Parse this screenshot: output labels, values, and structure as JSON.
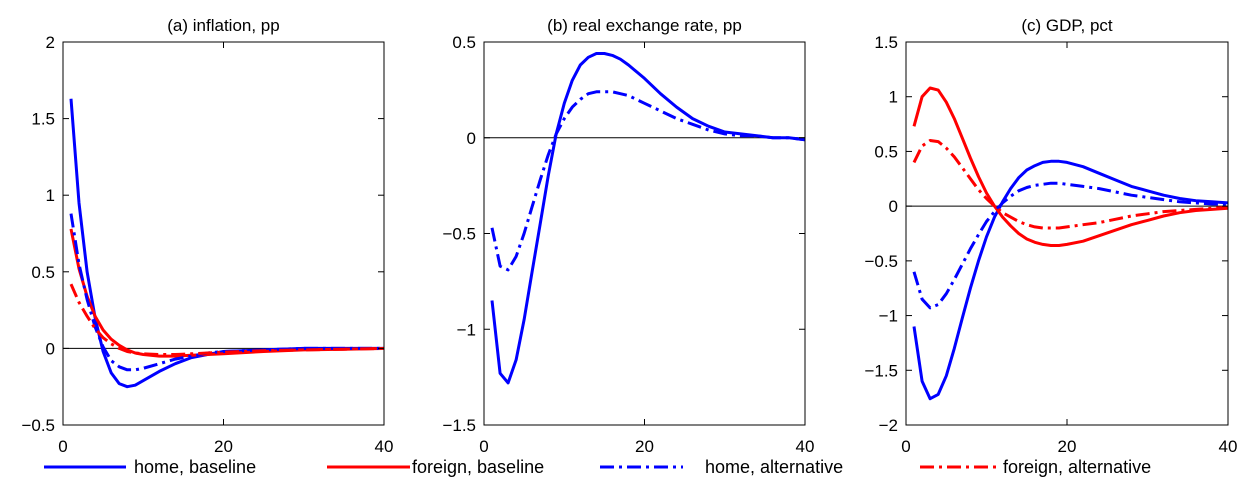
{
  "chart_data": [
    {
      "type": "line",
      "title": "(a) inflation, pp",
      "xlabel": "",
      "ylabel": "",
      "xlim": [
        0,
        40
      ],
      "ylim": [
        -0.5,
        2
      ],
      "xticks": [
        0,
        20,
        40
      ],
      "yticks": [
        -0.5,
        0,
        0.5,
        1,
        1.5,
        2
      ],
      "xtick_labels": [
        "0",
        "20",
        "40"
      ],
      "ytick_labels": [
        "−0.5",
        "0",
        "0.5",
        "1",
        "1.5",
        "2"
      ],
      "zero_line": true,
      "grid": false,
      "series": [
        {
          "name": "home, baseline",
          "color": "#0000ff",
          "dash": "solid",
          "x": [
            1,
            2,
            3,
            4,
            5,
            6,
            7,
            8,
            9,
            10,
            12,
            14,
            16,
            18,
            20,
            25,
            30,
            35,
            40
          ],
          "y": [
            1.63,
            0.95,
            0.5,
            0.2,
            -0.02,
            -0.16,
            -0.23,
            -0.25,
            -0.24,
            -0.21,
            -0.15,
            -0.1,
            -0.06,
            -0.04,
            -0.02,
            -0.01,
            0,
            0,
            0
          ]
        },
        {
          "name": "foreign, baseline",
          "color": "#ff0000",
          "dash": "solid",
          "x": [
            1,
            2,
            3,
            4,
            5,
            6,
            7,
            8,
            9,
            10,
            12,
            14,
            16,
            18,
            20,
            25,
            30,
            35,
            40
          ],
          "y": [
            0.78,
            0.52,
            0.34,
            0.21,
            0.12,
            0.06,
            0.02,
            -0.01,
            -0.03,
            -0.04,
            -0.05,
            -0.05,
            -0.045,
            -0.04,
            -0.035,
            -0.02,
            -0.01,
            -0.005,
            0
          ]
        },
        {
          "name": "home, alternative",
          "color": "#0000ff",
          "dash": "dashdot",
          "x": [
            1,
            2,
            3,
            4,
            5,
            6,
            7,
            8,
            9,
            10,
            12,
            14,
            16,
            18,
            20,
            25,
            30,
            35,
            40
          ],
          "y": [
            0.88,
            0.55,
            0.32,
            0.14,
            0.01,
            -0.08,
            -0.12,
            -0.14,
            -0.14,
            -0.13,
            -0.1,
            -0.07,
            -0.05,
            -0.03,
            -0.02,
            -0.01,
            0,
            0,
            0
          ]
        },
        {
          "name": "foreign, alternative",
          "color": "#ff0000",
          "dash": "dashdot",
          "x": [
            1,
            2,
            3,
            4,
            5,
            6,
            7,
            8,
            9,
            10,
            12,
            14,
            16,
            18,
            20,
            25,
            30,
            35,
            40
          ],
          "y": [
            0.42,
            0.3,
            0.21,
            0.13,
            0.07,
            0.03,
            0,
            -0.02,
            -0.03,
            -0.035,
            -0.04,
            -0.04,
            -0.035,
            -0.03,
            -0.025,
            -0.015,
            -0.01,
            -0.005,
            0
          ]
        }
      ]
    },
    {
      "type": "line",
      "title": "(b) real exchange rate, pp",
      "xlabel": "",
      "ylabel": "",
      "xlim": [
        0,
        40
      ],
      "ylim": [
        -1.5,
        0.5
      ],
      "xticks": [
        0,
        20,
        40
      ],
      "yticks": [
        -1.5,
        -1,
        -0.5,
        0,
        0.5
      ],
      "xtick_labels": [
        "0",
        "20",
        "40"
      ],
      "ytick_labels": [
        "−1.5",
        "−1",
        "−0.5",
        "0",
        "0.5"
      ],
      "zero_line": true,
      "grid": false,
      "series": [
        {
          "name": "home, baseline",
          "color": "#0000ff",
          "dash": "solid",
          "x": [
            1,
            2,
            3,
            4,
            5,
            6,
            7,
            8,
            9,
            10,
            11,
            12,
            13,
            14,
            15,
            16,
            17,
            18,
            20,
            22,
            24,
            26,
            28,
            30,
            32,
            34,
            36,
            38,
            40
          ],
          "y": [
            -0.85,
            -1.23,
            -1.28,
            -1.16,
            -0.95,
            -0.7,
            -0.45,
            -0.2,
            0.02,
            0.18,
            0.3,
            0.38,
            0.42,
            0.44,
            0.44,
            0.43,
            0.41,
            0.38,
            0.31,
            0.23,
            0.16,
            0.1,
            0.06,
            0.03,
            0.02,
            0.01,
            0,
            0,
            -0.01
          ]
        },
        {
          "name": "home, alternative",
          "color": "#0000ff",
          "dash": "dashdot",
          "x": [
            1,
            2,
            3,
            4,
            5,
            6,
            7,
            8,
            9,
            10,
            11,
            12,
            13,
            14,
            15,
            16,
            17,
            18,
            20,
            22,
            24,
            26,
            28,
            30,
            32,
            34,
            36,
            38,
            40
          ],
          "y": [
            -0.47,
            -0.67,
            -0.69,
            -0.62,
            -0.5,
            -0.36,
            -0.22,
            -0.09,
            0.02,
            0.1,
            0.16,
            0.2,
            0.23,
            0.24,
            0.24,
            0.24,
            0.23,
            0.22,
            0.18,
            0.14,
            0.1,
            0.07,
            0.04,
            0.02,
            0.01,
            0.01,
            0,
            0,
            -0.01
          ]
        }
      ]
    },
    {
      "type": "line",
      "title": "(c) GDP, pct",
      "xlabel": "",
      "ylabel": "",
      "xlim": [
        0,
        40
      ],
      "ylim": [
        -2,
        1.5
      ],
      "xticks": [
        0,
        20,
        40
      ],
      "yticks": [
        -2,
        -1.5,
        -1,
        -0.5,
        0,
        0.5,
        1,
        1.5
      ],
      "xtick_labels": [
        "0",
        "20",
        "40"
      ],
      "ytick_labels": [
        "−2",
        "−1.5",
        "−1",
        "−0.5",
        "0",
        "0.5",
        "1",
        "1.5"
      ],
      "zero_line": true,
      "grid": false,
      "series": [
        {
          "name": "home, baseline",
          "color": "#0000ff",
          "dash": "solid",
          "x": [
            1,
            2,
            3,
            4,
            5,
            6,
            7,
            8,
            9,
            10,
            11,
            12,
            13,
            14,
            15,
            16,
            17,
            18,
            19,
            20,
            22,
            24,
            26,
            28,
            30,
            32,
            34,
            36,
            38,
            40
          ],
          "y": [
            -1.1,
            -1.6,
            -1.76,
            -1.72,
            -1.55,
            -1.3,
            -1.02,
            -0.75,
            -0.5,
            -0.28,
            -0.1,
            0.04,
            0.16,
            0.26,
            0.33,
            0.37,
            0.4,
            0.41,
            0.41,
            0.4,
            0.36,
            0.3,
            0.24,
            0.18,
            0.14,
            0.1,
            0.07,
            0.05,
            0.04,
            0.03
          ]
        },
        {
          "name": "foreign, baseline",
          "color": "#ff0000",
          "dash": "solid",
          "x": [
            1,
            2,
            3,
            4,
            5,
            6,
            7,
            8,
            9,
            10,
            11,
            12,
            13,
            14,
            15,
            16,
            17,
            18,
            19,
            20,
            22,
            24,
            26,
            28,
            30,
            32,
            34,
            36,
            38,
            40
          ],
          "y": [
            0.73,
            1.0,
            1.08,
            1.06,
            0.95,
            0.8,
            0.62,
            0.44,
            0.27,
            0.12,
            0.0,
            -0.1,
            -0.18,
            -0.25,
            -0.3,
            -0.33,
            -0.35,
            -0.36,
            -0.36,
            -0.35,
            -0.32,
            -0.27,
            -0.22,
            -0.17,
            -0.13,
            -0.09,
            -0.06,
            -0.04,
            -0.03,
            -0.02
          ]
        },
        {
          "name": "home, alternative",
          "color": "#0000ff",
          "dash": "dashdot",
          "x": [
            1,
            2,
            3,
            4,
            5,
            6,
            7,
            8,
            9,
            10,
            11,
            12,
            13,
            14,
            15,
            16,
            17,
            18,
            19,
            20,
            22,
            24,
            26,
            28,
            30,
            32,
            34,
            36,
            38,
            40
          ],
          "y": [
            -0.6,
            -0.85,
            -0.93,
            -0.9,
            -0.8,
            -0.67,
            -0.53,
            -0.39,
            -0.26,
            -0.14,
            -0.05,
            0.03,
            0.09,
            0.14,
            0.17,
            0.19,
            0.2,
            0.21,
            0.21,
            0.2,
            0.18,
            0.16,
            0.13,
            0.1,
            0.08,
            0.06,
            0.04,
            0.03,
            0.02,
            0.02
          ]
        },
        {
          "name": "foreign, alternative",
          "color": "#ff0000",
          "dash": "dashdot",
          "x": [
            1,
            2,
            3,
            4,
            5,
            6,
            7,
            8,
            9,
            10,
            11,
            12,
            13,
            14,
            15,
            16,
            17,
            18,
            19,
            20,
            22,
            24,
            26,
            28,
            30,
            32,
            34,
            36,
            38,
            40
          ],
          "y": [
            0.4,
            0.55,
            0.6,
            0.59,
            0.53,
            0.45,
            0.35,
            0.25,
            0.15,
            0.07,
            0.0,
            -0.06,
            -0.1,
            -0.14,
            -0.17,
            -0.19,
            -0.2,
            -0.2,
            -0.2,
            -0.19,
            -0.17,
            -0.15,
            -0.12,
            -0.09,
            -0.07,
            -0.05,
            -0.04,
            -0.03,
            -0.02,
            -0.01
          ]
        }
      ]
    }
  ],
  "legend": {
    "placement": "bottom",
    "entries": [
      {
        "label": "home, baseline",
        "color": "#0000ff",
        "dash": "solid"
      },
      {
        "label": "foreign, baseline",
        "color": "#ff0000",
        "dash": "solid"
      },
      {
        "label": "home, alternative",
        "color": "#0000ff",
        "dash": "dashdot"
      },
      {
        "label": "foreign, alternative",
        "color": "#ff0000",
        "dash": "dashdot"
      }
    ]
  }
}
